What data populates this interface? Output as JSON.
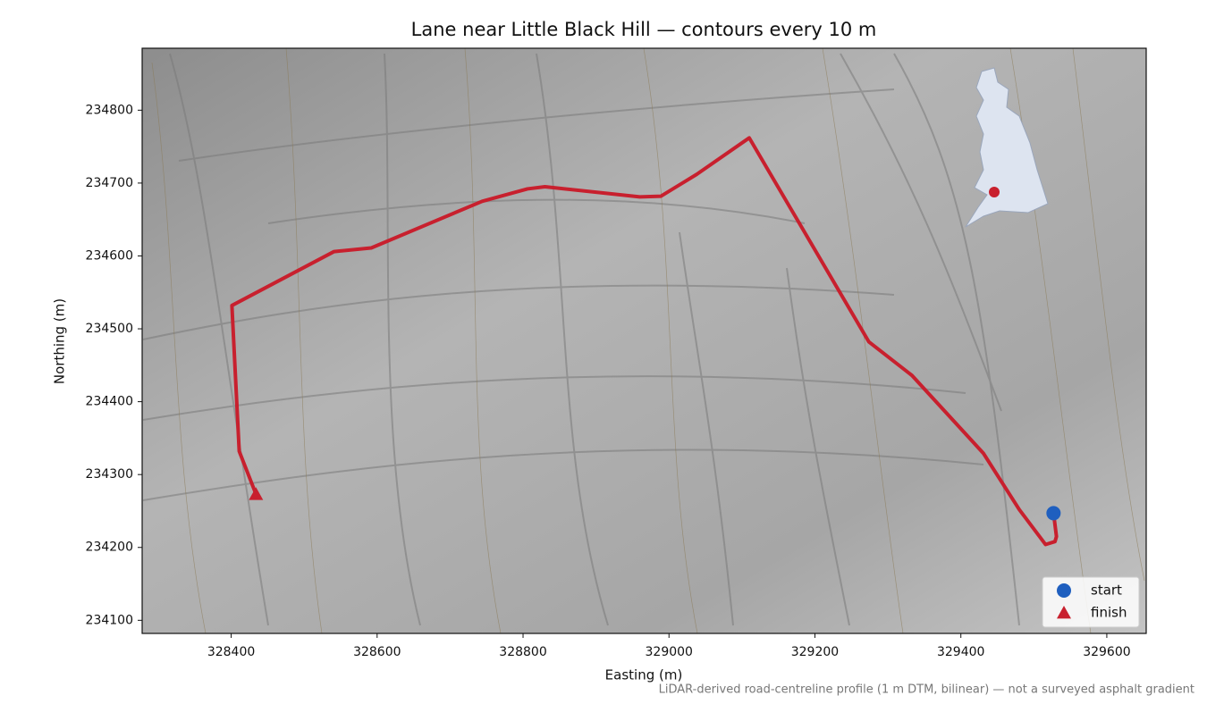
{
  "chart_data": {
    "type": "map",
    "title": "Lane near Little Black Hill — contours every 10 m",
    "x_label": "Easting (m)",
    "y_label": "Northing (m)",
    "footnote": "LiDAR-derived road-centreline profile (1 m DTM, bilinear) — not a surveyed asphalt gradient",
    "xlim": [
      328278,
      329654
    ],
    "ylim": [
      234082,
      234885
    ],
    "xticks": [
      328400,
      328600,
      328800,
      329000,
      329200,
      329400,
      329600
    ],
    "yticks": [
      234100,
      234200,
      234300,
      234400,
      234500,
      234600,
      234700,
      234800
    ],
    "route": {
      "color": "#c8202e",
      "x": [
        329527,
        329531,
        329529,
        329516,
        329480,
        329431,
        329333,
        329274,
        329110,
        329038,
        328989,
        328960,
        328830,
        328806,
        328744,
        328592,
        328541,
        328401,
        328411,
        328434
      ],
      "y": [
        234247,
        234215,
        234208,
        234204,
        234252,
        234329,
        234436,
        234482,
        234762,
        234712,
        234682,
        234681,
        234695,
        234692,
        234675,
        234611,
        234606,
        234532,
        234332,
        234273
      ]
    },
    "series": [
      {
        "name": "start",
        "color": "#1f5fbf",
        "marker": "circle",
        "x": [
          329527
        ],
        "y": [
          234247
        ]
      },
      {
        "name": "finish",
        "color": "#c8202e",
        "marker": "triangle",
        "x": [
          328434
        ],
        "y": [
          234273
        ]
      }
    ],
    "legend": "lower right"
  }
}
